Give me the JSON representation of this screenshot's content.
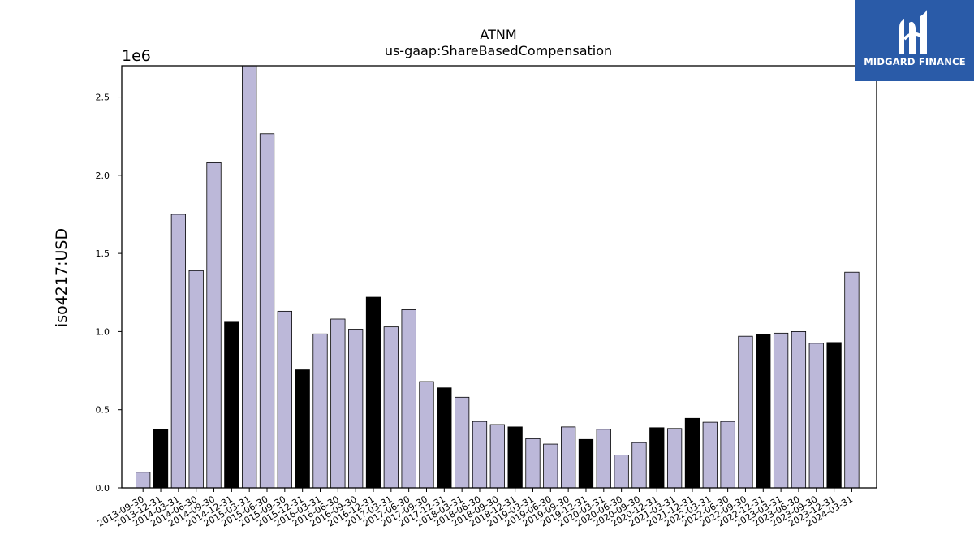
{
  "logo": {
    "text": "MIDGARD FINANCE",
    "bg": "#2a5ba8"
  },
  "chart_data": {
    "type": "bar",
    "title": "ATNM",
    "subtitle": "us-gaap:ShareBasedCompensation",
    "ylabel": "iso4217:USD",
    "xlabel": "",
    "offset_label": "1e6",
    "scale": 1000000,
    "ylim": [
      0,
      2.7
    ],
    "yticks": [
      "0.0",
      "0.5",
      "1.0",
      "1.5",
      "2.0",
      "2.5"
    ],
    "grid": false,
    "colors": {
      "Q": "#bcb8d9",
      "FY": "#000000",
      "edge": "#000000"
    },
    "categories": [
      "2013-09-30",
      "2013-12-31",
      "2014-03-31",
      "2014-06-30",
      "2014-09-30",
      "2014-12-31",
      "2015-03-31",
      "2015-06-30",
      "2015-09-30",
      "2015-12-31",
      "2016-03-31",
      "2016-06-30",
      "2016-09-30",
      "2016-12-31",
      "2017-03-31",
      "2017-06-30",
      "2017-09-30",
      "2017-12-31",
      "2018-03-31",
      "2018-06-30",
      "2018-09-30",
      "2018-12-31",
      "2019-03-31",
      "2019-06-30",
      "2019-09-30",
      "2019-12-31",
      "2020-03-31",
      "2020-06-30",
      "2020-09-30",
      "2020-12-31",
      "2021-03-31",
      "2021-12-31",
      "2022-03-31",
      "2022-06-30",
      "2022-09-30",
      "2022-12-31",
      "2023-03-31",
      "2023-06-30",
      "2023-09-30",
      "2023-12-31",
      "2024-03-31"
    ],
    "values": [
      0.1,
      0.375,
      1.75,
      1.39,
      2.08,
      1.06,
      2.7,
      2.265,
      1.13,
      0.755,
      0.985,
      1.08,
      1.015,
      1.22,
      1.03,
      1.14,
      0.68,
      0.64,
      0.58,
      0.425,
      0.405,
      0.39,
      0.315,
      0.28,
      0.39,
      0.31,
      0.375,
      0.21,
      0.29,
      0.385,
      0.38,
      0.445,
      0.42,
      0.425,
      0.97,
      0.98,
      0.99,
      1.0,
      0.925,
      0.93,
      1.38
    ],
    "period": [
      "Q",
      "FY",
      "Q",
      "Q",
      "Q",
      "FY",
      "Q",
      "Q",
      "Q",
      "FY",
      "Q",
      "Q",
      "Q",
      "FY",
      "Q",
      "Q",
      "Q",
      "FY",
      "Q",
      "Q",
      "Q",
      "FY",
      "Q",
      "Q",
      "Q",
      "FY",
      "Q",
      "Q",
      "Q",
      "FY",
      "Q",
      "FY",
      "Q",
      "Q",
      "Q",
      "FY",
      "Q",
      "Q",
      "Q",
      "FY",
      "Q"
    ]
  }
}
